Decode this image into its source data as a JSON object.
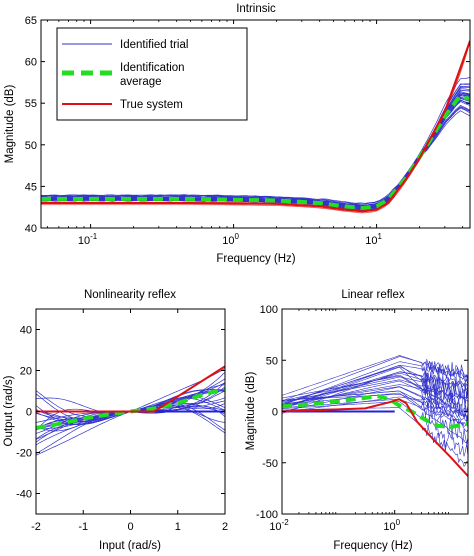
{
  "chart_data": [
    {
      "type": "line",
      "title": "Intrinsic",
      "xlabel": "Frequency (Hz)",
      "ylabel": "Magnitude (dB)",
      "xscale": "log",
      "xlim": [
        0.045,
        45
      ],
      "ylim": [
        40,
        65
      ],
      "xticks": [
        0.1,
        1,
        10
      ],
      "xtick_labels": [
        {
          "base": "10",
          "exp": "-1"
        },
        {
          "base": "10",
          "exp": "0"
        },
        {
          "base": "10",
          "exp": "1"
        }
      ],
      "yticks": [
        40,
        45,
        50,
        55,
        60,
        65
      ],
      "grid": false,
      "legend_position": "top-left",
      "legend": [
        {
          "label": "Identified trial",
          "color": "#3333cc",
          "style": "thin"
        },
        {
          "label_lines": [
            "Identification",
            "average"
          ],
          "color": "#22dd22",
          "style": "thick-dashed"
        },
        {
          "label": "True system",
          "color": "#dd1111",
          "style": "solid"
        }
      ],
      "series": [
        {
          "name": "True system",
          "color": "#dd1111",
          "x": [
            0.045,
            0.5,
            2,
            4,
            6,
            8,
            10,
            12,
            16,
            20,
            30,
            45
          ],
          "y": [
            43.0,
            43.0,
            42.9,
            42.6,
            42.2,
            42.0,
            42.2,
            43.0,
            45.8,
            48.4,
            54.0,
            62.5
          ]
        },
        {
          "name": "Identification average",
          "color": "#22dd22",
          "x": [
            0.045,
            0.5,
            2,
            4,
            6,
            8,
            10,
            12,
            16,
            20,
            30,
            38,
            45
          ],
          "y": [
            43.5,
            43.5,
            43.3,
            43.0,
            42.6,
            42.4,
            42.6,
            43.4,
            46.0,
            48.5,
            53.4,
            55.8,
            55.5
          ]
        }
      ]
    },
    {
      "type": "line",
      "title": "Nonlinearity reflex",
      "xlabel": "Input (rad/s)",
      "ylabel": "Output (rad/s)",
      "xlim": [
        -2,
        2
      ],
      "ylim": [
        -50,
        50
      ],
      "xticks": [
        -2,
        -1,
        0,
        1,
        2
      ],
      "yticks": [
        -40,
        -20,
        0,
        20,
        40
      ],
      "grid": false,
      "series": [
        {
          "name": "True system",
          "color": "#dd1111",
          "x": [
            -2,
            0.5,
            2
          ],
          "y": [
            0,
            0,
            22
          ]
        },
        {
          "name": "Identification average",
          "color": "#22dd22",
          "x": [
            -2,
            -1.5,
            -1,
            -0.5,
            0,
            0.5,
            1,
            1.5,
            2
          ],
          "y": [
            -8,
            -6,
            -3.5,
            -1.5,
            0,
            1.5,
            4,
            8,
            11
          ]
        }
      ]
    },
    {
      "type": "line",
      "title": "Linear reflex",
      "xlabel": "Frequency (Hz)",
      "ylabel": "Magnitude (dB)",
      "xscale": "log",
      "xlim": [
        0.01,
        20
      ],
      "ylim": [
        -100,
        100
      ],
      "xticks": [
        0.01,
        1
      ],
      "xtick_labels": [
        {
          "base": "10",
          "exp": "-2"
        },
        {
          "base": "10",
          "exp": "0"
        }
      ],
      "yticks": [
        -100,
        -50,
        0,
        50,
        100
      ],
      "grid": false,
      "series": [
        {
          "name": "True system",
          "color": "#dd1111",
          "x": [
            0.01,
            0.3,
            0.8,
            1.2,
            1.6,
            2.5,
            5,
            10,
            20
          ],
          "y": [
            0,
            3,
            9,
            12,
            8,
            -10,
            -28,
            -45,
            -63
          ]
        },
        {
          "name": "Identification average",
          "color": "#22dd22",
          "x": [
            0.01,
            0.05,
            0.2,
            0.5,
            0.8,
            1.2,
            2,
            3.5,
            6,
            10,
            20
          ],
          "y": [
            5,
            8,
            12,
            15,
            12,
            6,
            0,
            -8,
            -14,
            -15,
            -12
          ]
        }
      ]
    }
  ]
}
